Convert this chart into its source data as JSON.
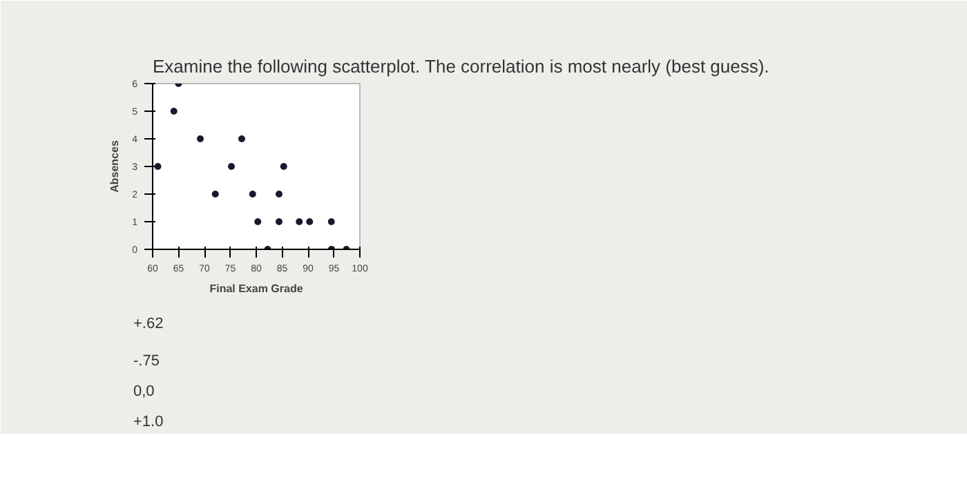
{
  "chart_data": {
    "type": "scatter",
    "title": "Examine the following scatterplot. The correlation is most nearly (best guess).",
    "xlabel": "Final Exam Grade",
    "ylabel": "Absences",
    "x": [
      61,
      64.1,
      65,
      69.2,
      72.1,
      75.2,
      77.2,
      79.3,
      80.3,
      82.2,
      84.4,
      84.4,
      85.3,
      88.3,
      90.3,
      94.5,
      94.5,
      97.4
    ],
    "series": [
      {
        "color": "#1a1a2e",
        "values": [
          3,
          5,
          6,
          4,
          2,
          3,
          4,
          2,
          1,
          0,
          2,
          1,
          3,
          1,
          1,
          1,
          0,
          0
        ]
      }
    ],
    "xlim": [
      60,
      100
    ],
    "xticks": [
      60,
      65,
      70,
      75,
      80,
      85,
      90,
      95,
      100
    ],
    "ylim": [
      0,
      6
    ],
    "yticks": [
      0,
      1,
      2,
      3,
      4,
      5,
      6
    ],
    "grid": false,
    "marker": "circle",
    "annotations": [
      "+.62",
      "-.75",
      "0,0",
      "+1.0"
    ]
  }
}
